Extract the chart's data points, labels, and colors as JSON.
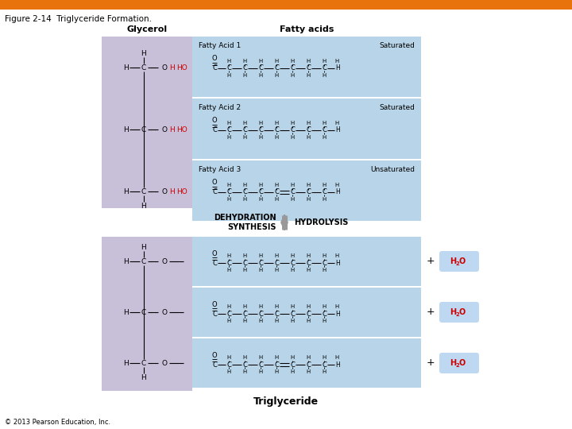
{
  "title": "Figure 2-14  Triglyceride Formation.",
  "header_bar_color": "#E8720C",
  "bg_color": "#FFFFFF",
  "glycerol_bg": "#C8C0D8",
  "fatty_acid_bg": "#B8D4E8",
  "red_color": "#CC0000",
  "black_color": "#000000",
  "arrow_color": "#999999",
  "h2o_bg": "#B8D4F0",
  "label_glycerol": "Glycerol",
  "label_fatty_acids": "Fatty acids",
  "fa_labels": [
    "Fatty Acid 1",
    "Fatty Acid 2",
    "Fatty Acid 3"
  ],
  "sat_labels": [
    "Saturated",
    "Saturated",
    "Unsaturated"
  ],
  "label_dehydration": "DEHYDRATION\nSYNTHESIS",
  "label_hydrolysis": "HYDROLYSIS",
  "label_triglyceride": "Triglyceride",
  "label_copyright": "© 2013 Pearson Education, Inc."
}
